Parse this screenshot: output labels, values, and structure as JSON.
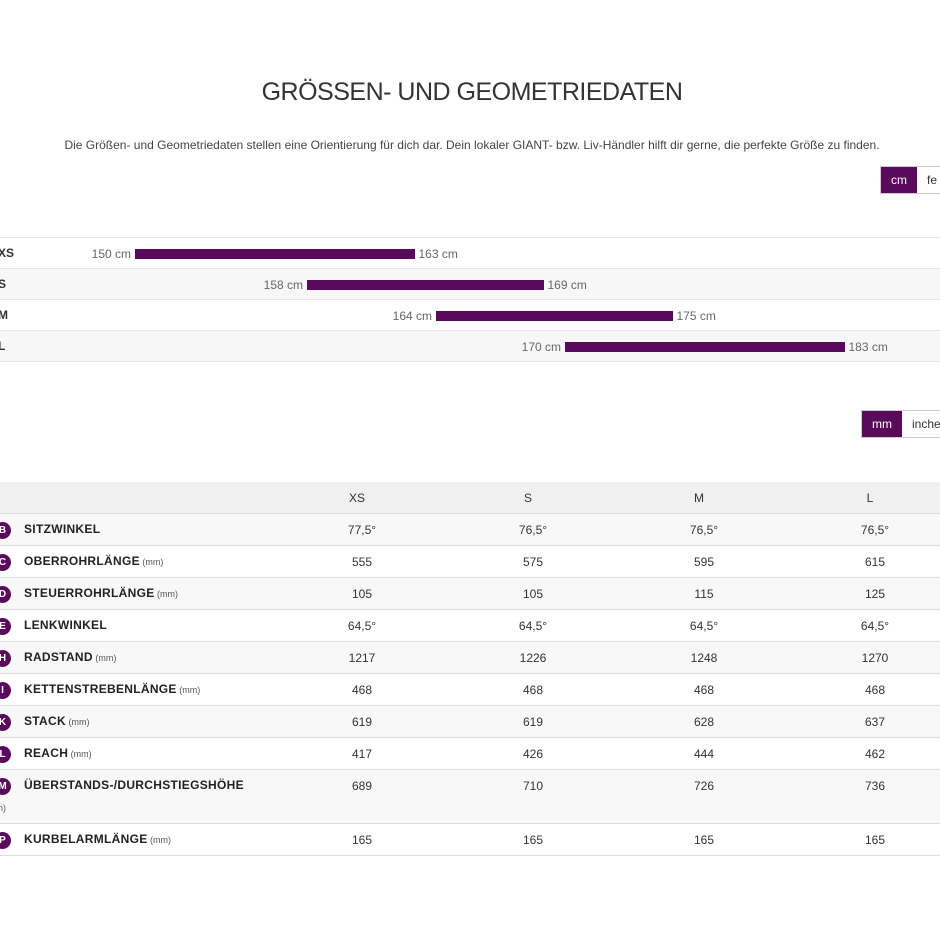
{
  "title": "GRÖSSEN- UND GEOMETRIEDATEN",
  "intro": "Die Größen- und Geometriedaten stellen eine Orientierung für dich dar. Dein lokaler GIANT- bzw. Liv-Händler hilft dir gerne, die perfekte Größe zu finden.",
  "height_unit_toggle": {
    "active": "cm",
    "inactive": "fe"
  },
  "geometry_unit_toggle": {
    "active": "mm",
    "inactive": "inche"
  },
  "size_ranges": [
    {
      "label": "XS",
      "min_cm": 150,
      "max_cm": 163,
      "min_text": "150 cm",
      "max_text": "163 cm"
    },
    {
      "label": "S",
      "min_cm": 158,
      "max_cm": 169,
      "min_text": "158 cm",
      "max_text": "169 cm"
    },
    {
      "label": "M",
      "min_cm": 164,
      "max_cm": 175,
      "min_text": "164 cm",
      "max_text": "175 cm"
    },
    {
      "label": "L",
      "min_cm": 170,
      "max_cm": 183,
      "min_text": "170 cm",
      "max_text": "183 cm"
    }
  ],
  "geometry": {
    "sizes": [
      "XS",
      "S",
      "M",
      "L"
    ],
    "rows": [
      {
        "badge": "B",
        "name": "SITZWINKEL",
        "unit": "",
        "values": [
          "77,5°",
          "76,5°",
          "76,5°",
          "76,5°"
        ]
      },
      {
        "badge": "C",
        "name": "OBERROHRLÄNGE",
        "unit": "(mm)",
        "values": [
          "555",
          "575",
          "595",
          "615"
        ]
      },
      {
        "badge": "D",
        "name": "STEUERROHRLÄNGE",
        "unit": "(mm)",
        "values": [
          "105",
          "105",
          "115",
          "125"
        ]
      },
      {
        "badge": "E",
        "name": "LENKWINKEL",
        "unit": "",
        "values": [
          "64,5°",
          "64,5°",
          "64,5°",
          "64,5°"
        ]
      },
      {
        "badge": "H",
        "name": "RADSTAND",
        "unit": "(mm)",
        "values": [
          "1217",
          "1226",
          "1248",
          "1270"
        ]
      },
      {
        "badge": "I",
        "name": "KETTENSTREBENLÄNGE",
        "unit": "(mm)",
        "values": [
          "468",
          "468",
          "468",
          "468"
        ]
      },
      {
        "badge": "K",
        "name": "STACK",
        "unit": "(mm)",
        "values": [
          "619",
          "619",
          "628",
          "637"
        ]
      },
      {
        "badge": "L",
        "name": "REACH",
        "unit": "(mm)",
        "values": [
          "417",
          "426",
          "444",
          "462"
        ]
      },
      {
        "badge": "M",
        "name": "ÜBERSTANDS-/DURCHSTIEGSHÖHE",
        "unit": "",
        "wrapped_unit": "n)",
        "values": [
          "689",
          "710",
          "726",
          "736"
        ]
      },
      {
        "badge": "P",
        "name": "KURBELARMLÄNGE",
        "unit": "(mm)",
        "values": [
          "165",
          "165",
          "165",
          "165"
        ]
      }
    ]
  }
}
